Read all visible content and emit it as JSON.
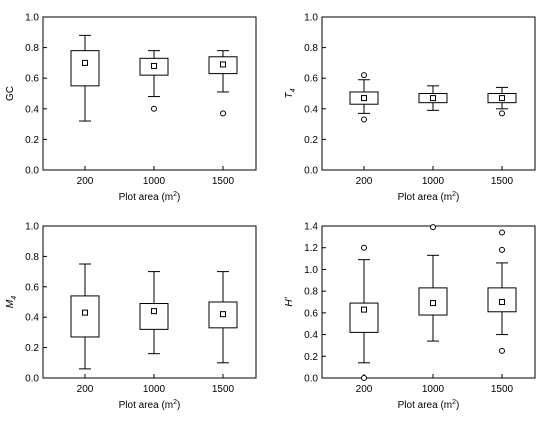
{
  "chart_data": [
    {
      "type": "box",
      "ylabel": "GC",
      "ylabel_italic": false,
      "xlabel": "Plot area (m2)",
      "xlabel_main": "Plot area (m",
      "xlabel_sup": "2",
      "xlabel_tail": ")",
      "categories": [
        "200",
        "1000",
        "1500"
      ],
      "ylim": [
        0.0,
        1.0
      ],
      "yticks": [
        "0.0",
        "0.2",
        "0.4",
        "0.6",
        "0.8",
        "1.0"
      ],
      "ytick_values": [
        0.0,
        0.2,
        0.4,
        0.6,
        0.8,
        1.0
      ],
      "boxes": [
        {
          "whisker_low": 0.32,
          "q1": 0.55,
          "q3": 0.78,
          "whisker_high": 0.88,
          "mean": 0.7,
          "outliers": []
        },
        {
          "whisker_low": 0.48,
          "q1": 0.62,
          "q3": 0.73,
          "whisker_high": 0.78,
          "mean": 0.68,
          "outliers": [
            0.4
          ]
        },
        {
          "whisker_low": 0.51,
          "q1": 0.63,
          "q3": 0.74,
          "whisker_high": 0.78,
          "mean": 0.69,
          "outliers": [
            0.37
          ]
        }
      ]
    },
    {
      "type": "box",
      "ylabel": "T",
      "ylabel_sub": "4",
      "ylabel_italic": true,
      "xlabel": "Plot area (m2)",
      "xlabel_main": "Plot area (m",
      "xlabel_sup": "2",
      "xlabel_tail": ")",
      "categories": [
        "200",
        "1000",
        "1500"
      ],
      "ylim": [
        0.0,
        1.0
      ],
      "yticks": [
        "0.0",
        "0.2",
        "0.4",
        "0.6",
        "0.8",
        "1.0"
      ],
      "ytick_values": [
        0.0,
        0.2,
        0.4,
        0.6,
        0.8,
        1.0
      ],
      "boxes": [
        {
          "whisker_low": 0.37,
          "q1": 0.43,
          "q3": 0.51,
          "whisker_high": 0.59,
          "mean": 0.47,
          "outliers": [
            0.62,
            0.33
          ]
        },
        {
          "whisker_low": 0.39,
          "q1": 0.44,
          "q3": 0.5,
          "whisker_high": 0.55,
          "mean": 0.47,
          "outliers": []
        },
        {
          "whisker_low": 0.4,
          "q1": 0.44,
          "q3": 0.5,
          "whisker_high": 0.54,
          "mean": 0.47,
          "outliers": [
            0.37
          ]
        }
      ]
    },
    {
      "type": "box",
      "ylabel": "M",
      "ylabel_sub": "4",
      "ylabel_italic": true,
      "xlabel": "Plot area (m2)",
      "xlabel_main": "Plot area (m",
      "xlabel_sup": "2",
      "xlabel_tail": ")",
      "categories": [
        "200",
        "1000",
        "1500"
      ],
      "ylim": [
        0.0,
        1.0
      ],
      "yticks": [
        "0.0",
        "0.2",
        "0.4",
        "0.6",
        "0.8",
        "1.0"
      ],
      "ytick_values": [
        0.0,
        0.2,
        0.4,
        0.6,
        0.8,
        1.0
      ],
      "boxes": [
        {
          "whisker_low": 0.06,
          "q1": 0.27,
          "q3": 0.54,
          "whisker_high": 0.75,
          "mean": 0.43,
          "outliers": []
        },
        {
          "whisker_low": 0.16,
          "q1": 0.32,
          "q3": 0.49,
          "whisker_high": 0.7,
          "mean": 0.44,
          "outliers": []
        },
        {
          "whisker_low": 0.1,
          "q1": 0.33,
          "q3": 0.5,
          "whisker_high": 0.7,
          "mean": 0.42,
          "outliers": []
        }
      ]
    },
    {
      "type": "box",
      "ylabel": "H'",
      "ylabel_italic": true,
      "xlabel": "Plot area (m2)",
      "xlabel_main": "Plot area (m",
      "xlabel_sup": "2",
      "xlabel_tail": ")",
      "categories": [
        "200",
        "1000",
        "1500"
      ],
      "ylim": [
        0.0,
        1.4
      ],
      "yticks": [
        "0.0",
        "0.2",
        "0.4",
        "0.6",
        "0.8",
        "1.0",
        "1.2",
        "1.4"
      ],
      "ytick_values": [
        0.0,
        0.2,
        0.4,
        0.6,
        0.8,
        1.0,
        1.2,
        1.4
      ],
      "boxes": [
        {
          "whisker_low": 0.14,
          "q1": 0.42,
          "q3": 0.69,
          "whisker_high": 1.09,
          "mean": 0.63,
          "outliers": [
            1.2,
            0.0
          ]
        },
        {
          "whisker_low": 0.34,
          "q1": 0.58,
          "q3": 0.83,
          "whisker_high": 1.13,
          "mean": 0.69,
          "outliers": [
            1.39
          ]
        },
        {
          "whisker_low": 0.4,
          "q1": 0.61,
          "q3": 0.83,
          "whisker_high": 1.06,
          "mean": 0.7,
          "outliers": [
            1.34,
            1.18,
            0.25
          ]
        }
      ]
    }
  ]
}
